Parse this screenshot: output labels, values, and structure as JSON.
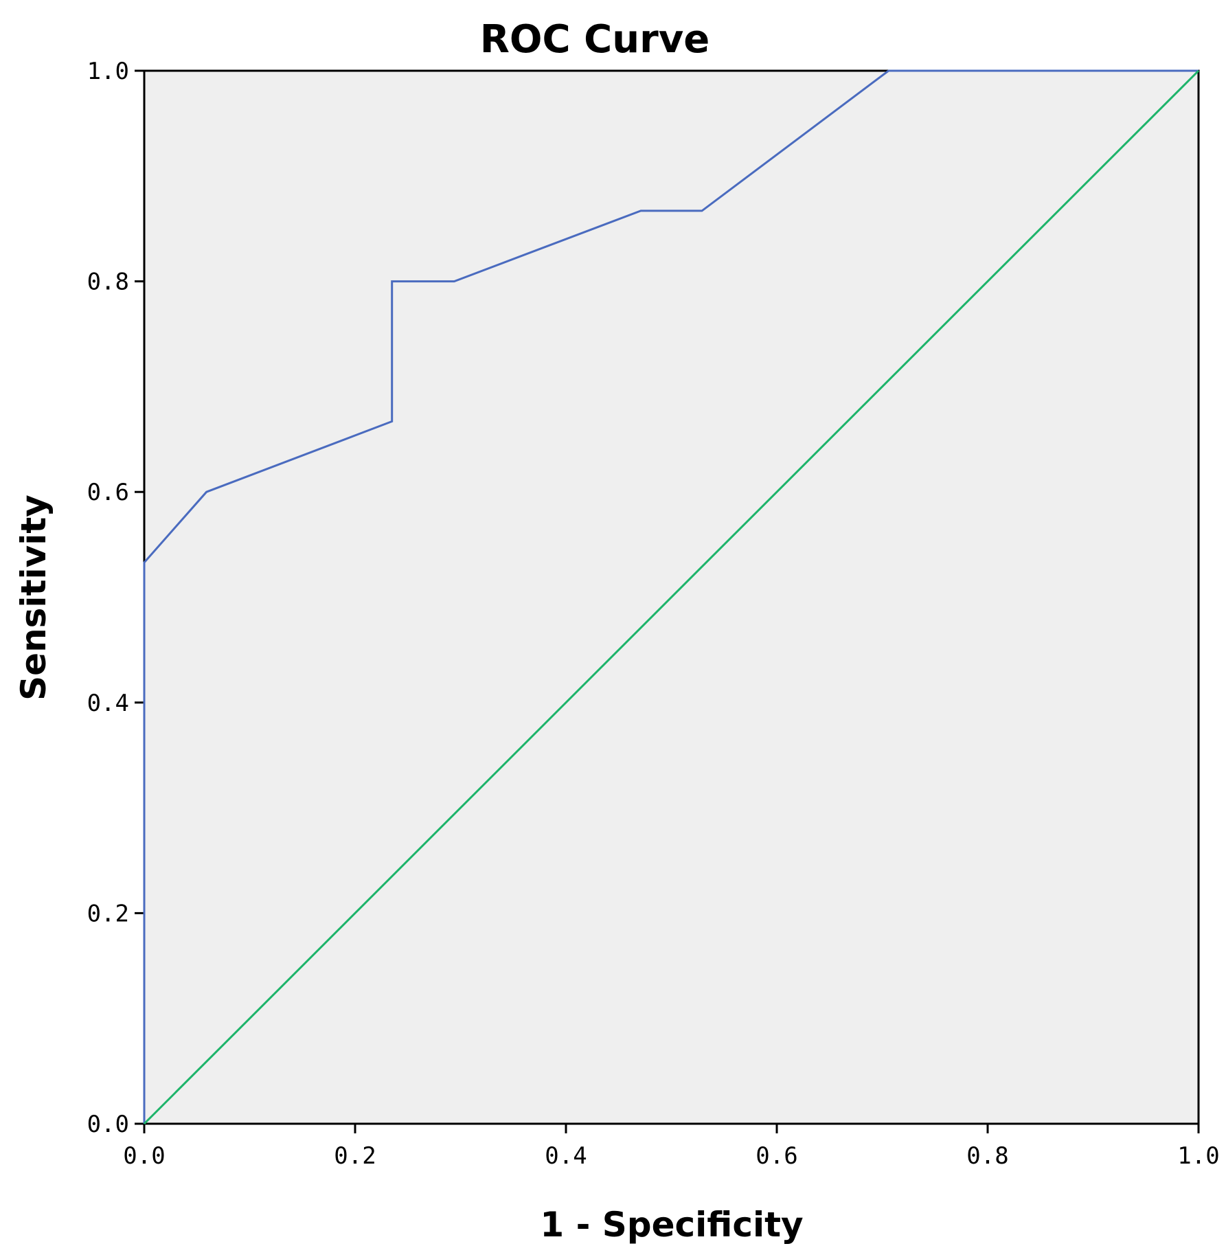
{
  "chart_data": {
    "type": "line",
    "title": "ROC Curve",
    "xlabel": "1 - Specificity",
    "ylabel": "Sensitivity",
    "xlim": [
      0.0,
      1.0
    ],
    "ylim": [
      0.0,
      1.0
    ],
    "x_ticks": [
      "0.0",
      "0.2",
      "0.4",
      "0.6",
      "0.8",
      "1.0"
    ],
    "y_ticks": [
      "0.0",
      "0.2",
      "0.4",
      "0.6",
      "0.8",
      "1.0"
    ],
    "grid": false,
    "background_color": "#efefef",
    "series": [
      {
        "color": "#4a6bbf",
        "points": [
          [
            0.0,
            0.0
          ],
          [
            0.0,
            0.533
          ],
          [
            0.059,
            0.6
          ],
          [
            0.235,
            0.667
          ],
          [
            0.235,
            0.8
          ],
          [
            0.294,
            0.8
          ],
          [
            0.471,
            0.867
          ],
          [
            0.529,
            0.867
          ],
          [
            0.706,
            1.0
          ],
          [
            1.0,
            1.0
          ]
        ]
      },
      {
        "color": "#1db46a",
        "points": [
          [
            0.0,
            0.0
          ],
          [
            1.0,
            1.0
          ]
        ]
      }
    ]
  }
}
